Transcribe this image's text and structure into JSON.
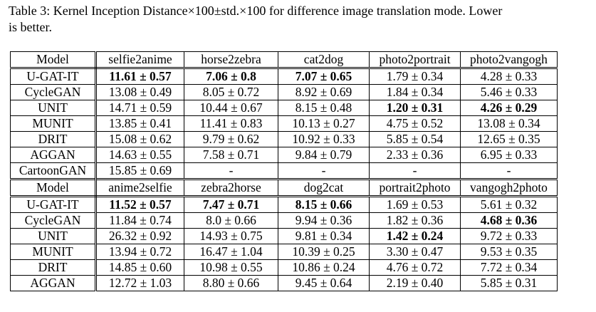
{
  "caption": {
    "line1": "Table 3: Kernel Inception Distance×100±std.×100 for difference image translation mode. Lower",
    "line2": "is better."
  },
  "section1": {
    "header": [
      "Model",
      "selfie2anime",
      "horse2zebra",
      "cat2dog",
      "photo2portrait",
      "photo2vangogh"
    ],
    "rows": [
      {
        "model": "U-GAT-IT",
        "cells": [
          "11.61 ± 0.57",
          "7.06 ± 0.8",
          "7.07 ± 0.65",
          "1.79 ± 0.34",
          "4.28 ± 0.33"
        ],
        "bold": [
          true,
          true,
          true,
          false,
          false
        ]
      },
      {
        "model": "CycleGAN",
        "cells": [
          "13.08 ± 0.49",
          "8.05 ± 0.72",
          "8.92 ± 0.69",
          "1.84 ± 0.34",
          "5.46 ± 0.33"
        ],
        "bold": [
          false,
          false,
          false,
          false,
          false
        ]
      },
      {
        "model": "UNIT",
        "cells": [
          "14.71 ± 0.59",
          "10.44 ± 0.67",
          "8.15 ± 0.48",
          "1.20 ± 0.31",
          "4.26 ± 0.29"
        ],
        "bold": [
          false,
          false,
          false,
          true,
          true
        ]
      },
      {
        "model": "MUNIT",
        "cells": [
          "13.85 ± 0.41",
          "11.41 ± 0.83",
          "10.13 ± 0.27",
          "4.75 ± 0.52",
          "13.08 ± 0.34"
        ],
        "bold": [
          false,
          false,
          false,
          false,
          false
        ]
      },
      {
        "model": "DRIT",
        "cells": [
          "15.08 ± 0.62",
          "9.79 ± 0.62",
          "10.92 ± 0.33",
          "5.85 ± 0.54",
          "12.65 ± 0.35"
        ],
        "bold": [
          false,
          false,
          false,
          false,
          false
        ]
      },
      {
        "model": "AGGAN",
        "cells": [
          "14.63 ± 0.55",
          "7.58 ± 0.71",
          "9.84 ± 0.79",
          "2.33 ± 0.36",
          "6.95 ± 0.33"
        ],
        "bold": [
          false,
          false,
          false,
          false,
          false
        ]
      },
      {
        "model": "CartoonGAN",
        "cells": [
          "15.85 ± 0.69",
          "-",
          "-",
          "-",
          "-"
        ],
        "bold": [
          false,
          false,
          false,
          false,
          false
        ]
      }
    ]
  },
  "section2": {
    "header": [
      "Model",
      "anime2selfie",
      "zebra2horse",
      "dog2cat",
      "portrait2photo",
      "vangogh2photo"
    ],
    "rows": [
      {
        "model": "U-GAT-IT",
        "cells": [
          "11.52 ± 0.57",
          "7.47 ± 0.71",
          "8.15 ± 0.66",
          "1.69 ± 0.53",
          "5.61 ± 0.32"
        ],
        "bold": [
          true,
          true,
          true,
          false,
          false
        ]
      },
      {
        "model": "CycleGAN",
        "cells": [
          "11.84 ± 0.74",
          "8.0 ± 0.66",
          "9.94 ± 0.36",
          "1.82 ± 0.36",
          "4.68 ± 0.36"
        ],
        "bold": [
          false,
          false,
          false,
          false,
          true
        ]
      },
      {
        "model": "UNIT",
        "cells": [
          "26.32 ± 0.92",
          "14.93 ± 0.75",
          "9.81 ± 0.34",
          "1.42 ± 0.24",
          "9.72 ± 0.33"
        ],
        "bold": [
          false,
          false,
          false,
          true,
          false
        ]
      },
      {
        "model": "MUNIT",
        "cells": [
          "13.94 ± 0.72",
          "16.47 ± 1.04",
          "10.39 ± 0.25",
          "3.30 ± 0.47",
          "9.53 ± 0.35"
        ],
        "bold": [
          false,
          false,
          false,
          false,
          false
        ]
      },
      {
        "model": "DRIT",
        "cells": [
          "14.85 ± 0.60",
          "10.98 ± 0.55",
          "10.86 ± 0.24",
          "4.76 ± 0.72",
          "7.72 ± 0.34"
        ],
        "bold": [
          false,
          false,
          false,
          false,
          false
        ]
      },
      {
        "model": "AGGAN",
        "cells": [
          "12.72 ± 1.03",
          "8.80 ± 0.66",
          "9.45 ± 0.64",
          "2.19 ± 0.40",
          "5.85 ± 0.31"
        ],
        "bold": [
          false,
          false,
          false,
          false,
          false
        ]
      }
    ]
  }
}
